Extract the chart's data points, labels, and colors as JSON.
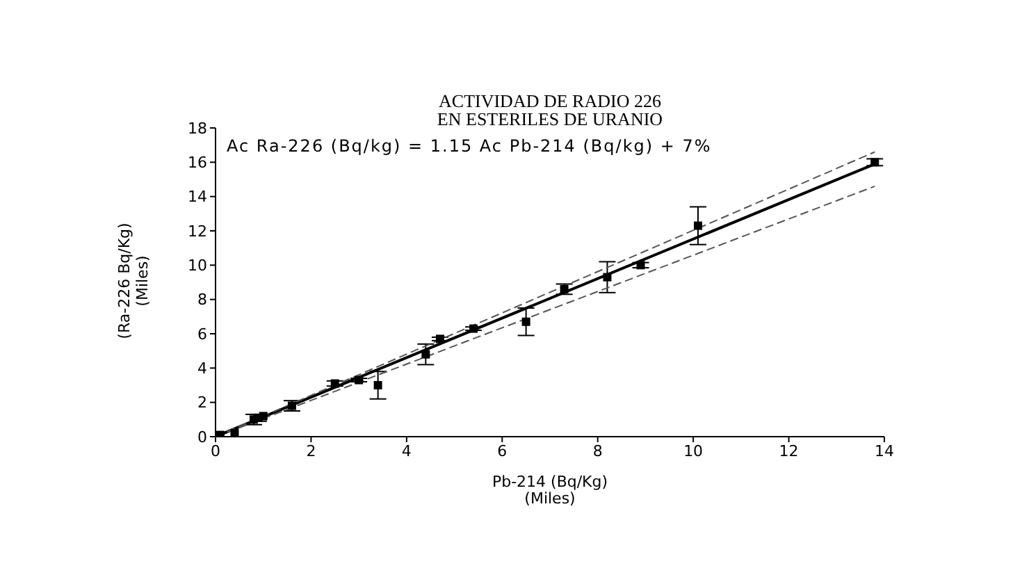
{
  "chart_data": {
    "type": "scatter",
    "title": "ACTIVIDAD DE RADIO 226\nEN ESTERILES DE URANIO",
    "xlabel": "Pb-214 (Bq/Kg)\n(Miles)",
    "ylabel": "(Ra-226 Bq/Kg)\n(Miles)",
    "annotations": [
      "Ac Ra-226 (Bq/kg) = 1.15 Ac Pb-214 (Bq/kg) + 7%"
    ],
    "series": [
      {
        "color": "#000000",
        "marker": "square",
        "x": [
          0.1,
          0.4,
          0.8,
          0.9,
          1.0,
          1.6,
          2.5,
          3.0,
          3.4,
          4.4,
          4.7,
          5.4,
          6.5,
          7.3,
          8.2,
          8.9,
          10.1,
          13.8
        ],
        "values": [
          0.1,
          0.2,
          1.0,
          1.1,
          1.2,
          1.8,
          3.1,
          3.3,
          3.0,
          4.8,
          5.7,
          6.3,
          6.7,
          8.6,
          9.3,
          10.0,
          12.3,
          16.0
        ],
        "errors": [
          null,
          null,
          0.3,
          0.2,
          null,
          0.3,
          0.15,
          0.1,
          0.8,
          0.6,
          0.1,
          0.1,
          0.8,
          0.3,
          0.9,
          0.15,
          1.1,
          0.2
        ]
      },
      {
        "type": "line",
        "color": "#000000",
        "line_style": "solid",
        "x": [
          0,
          13.8
        ],
        "values": [
          0,
          15.9
        ]
      },
      {
        "type": "line",
        "color": "#555555",
        "line_style": "dashed",
        "x": [
          0,
          13.8
        ],
        "values": [
          0,
          16.6
        ]
      },
      {
        "type": "line",
        "color": "#555555",
        "line_style": "dashed",
        "x": [
          0,
          13.8
        ],
        "values": [
          0,
          14.6
        ]
      }
    ],
    "xlim": [
      0,
      14
    ],
    "xticks": [
      0,
      2,
      4,
      6,
      8,
      10,
      12,
      14
    ],
    "ylim": [
      0,
      18
    ],
    "yticks": [
      0,
      2,
      4,
      6,
      8,
      10,
      12,
      14,
      16,
      18
    ]
  }
}
